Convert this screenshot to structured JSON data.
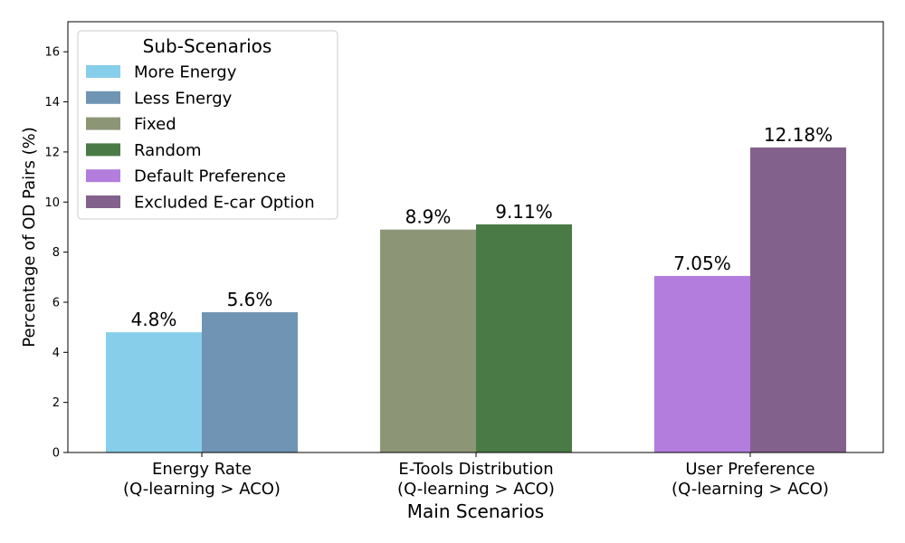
{
  "chart_data": {
    "type": "bar",
    "title": "",
    "xlabel": "Main Scenarios",
    "ylabel": "Percentage of OD Pairs (%)",
    "ylim": [
      0,
      17.2
    ],
    "yticks": [
      0,
      2,
      4,
      6,
      8,
      10,
      12,
      14,
      16
    ],
    "grid": false,
    "legend": {
      "title": "Sub-Scenarios",
      "placement": "upper-left"
    },
    "groups": [
      {
        "label_line1": "Energy Rate",
        "label_line2": "(Q-learning > ACO)",
        "bars": [
          {
            "series": "More Energy",
            "value": 4.8,
            "label": "4.8%",
            "color": "#87CEEB"
          },
          {
            "series": "Less Energy",
            "value": 5.6,
            "label": "5.6%",
            "color": "#7094B3"
          }
        ]
      },
      {
        "label_line1": "E-Tools Distribution",
        "label_line2": "(Q-learning > ACO)",
        "bars": [
          {
            "series": "Fixed",
            "value": 8.9,
            "label": "8.9%",
            "color": "#8C9677"
          },
          {
            "series": "Random",
            "value": 9.11,
            "label": "9.11%",
            "color": "#4A7A45"
          }
        ]
      },
      {
        "label_line1": "User Preference",
        "label_line2": "(Q-learning > ACO)",
        "bars": [
          {
            "series": "Default Preference",
            "value": 7.05,
            "label": "7.05%",
            "color": "#B27DDC"
          },
          {
            "series": "Excluded E-car Option",
            "value": 12.18,
            "label": "12.18%",
            "color": "#83618D"
          }
        ]
      }
    ]
  }
}
